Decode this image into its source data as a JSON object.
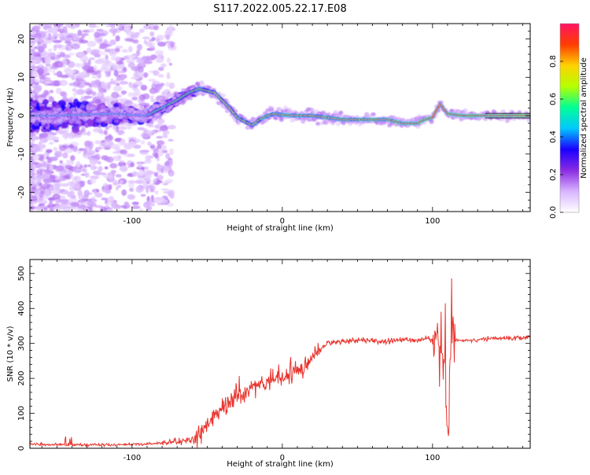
{
  "page": {
    "title": "S117.2022.005.22.17.E08"
  },
  "chart_data": [
    {
      "type": "heatmap",
      "xlabel": "Height of straight line (km)",
      "ylabel": "Frequency (Hz)",
      "xlim": [
        -168,
        165
      ],
      "ylim": [
        -25,
        24
      ],
      "x_ticks": [
        -100,
        0,
        100
      ],
      "y_ticks": [
        -20,
        -10,
        0,
        10,
        20
      ],
      "grid": false,
      "ridge": {
        "x": [
          -168,
          -150,
          -130,
          -110,
          -100,
          -90,
          -80,
          -70,
          -62,
          -55,
          -50,
          -45,
          -40,
          -35,
          -30,
          -25,
          -20,
          -15,
          -10,
          -5,
          0,
          10,
          20,
          30,
          40,
          50,
          60,
          70,
          75,
          80,
          85,
          90,
          95,
          100,
          102,
          105,
          110,
          120,
          130,
          140,
          150,
          165
        ],
        "y": [
          0,
          0,
          0.3,
          0.5,
          0.2,
          0,
          2,
          4,
          6,
          7,
          6.5,
          6,
          4,
          2,
          -0.5,
          -1.5,
          -2.5,
          -1,
          0,
          0.5,
          0.2,
          0,
          0,
          -0.5,
          -1,
          -1,
          -1,
          -1,
          -1.5,
          -2,
          -2,
          -2,
          -1,
          -0.5,
          1,
          3,
          0.5,
          0,
          0,
          0,
          0,
          0
        ]
      },
      "colorbar": {
        "label": "Normalized spectral amplitude",
        "range": [
          0,
          1
        ],
        "ticks": [
          0.0,
          0.2,
          0.4,
          0.6,
          0.8
        ],
        "colors": [
          "#ffffff",
          "#d8b4ff",
          "#8a2be2",
          "#1a00ff",
          "#00c8ff",
          "#00ff96",
          "#b4ff00",
          "#ffd200",
          "#ff3c00",
          "#ff1464"
        ]
      }
    },
    {
      "type": "line",
      "xlabel": "Height of straight line (km)",
      "ylabel": "SNR (10 * v/v)",
      "xlim": [
        -168,
        165
      ],
      "ylim": [
        0,
        540
      ],
      "x_ticks": [
        -100,
        0,
        100
      ],
      "y_ticks": [
        0,
        100,
        200,
        300,
        400,
        500
      ],
      "grid": false,
      "series": [
        {
          "color": "#e8332c",
          "x": [
            -168,
            -150,
            -130,
            -110,
            -90,
            -80,
            -70,
            -60,
            -55,
            -50,
            -45,
            -40,
            -30,
            -20,
            -10,
            0,
            10,
            20,
            25,
            30,
            40,
            50,
            60,
            70,
            80,
            90,
            95,
            100,
            105,
            108,
            110,
            112,
            115,
            120,
            130,
            140,
            150,
            165
          ],
          "y": [
            12,
            10,
            10,
            10,
            12,
            15,
            18,
            25,
            40,
            70,
            90,
            110,
            140,
            170,
            190,
            200,
            220,
            260,
            280,
            300,
            305,
            310,
            308,
            305,
            310,
            310,
            315,
            310,
            320,
            200,
            110,
            320,
            305,
            310,
            310,
            315,
            315,
            318
          ]
        }
      ]
    }
  ]
}
